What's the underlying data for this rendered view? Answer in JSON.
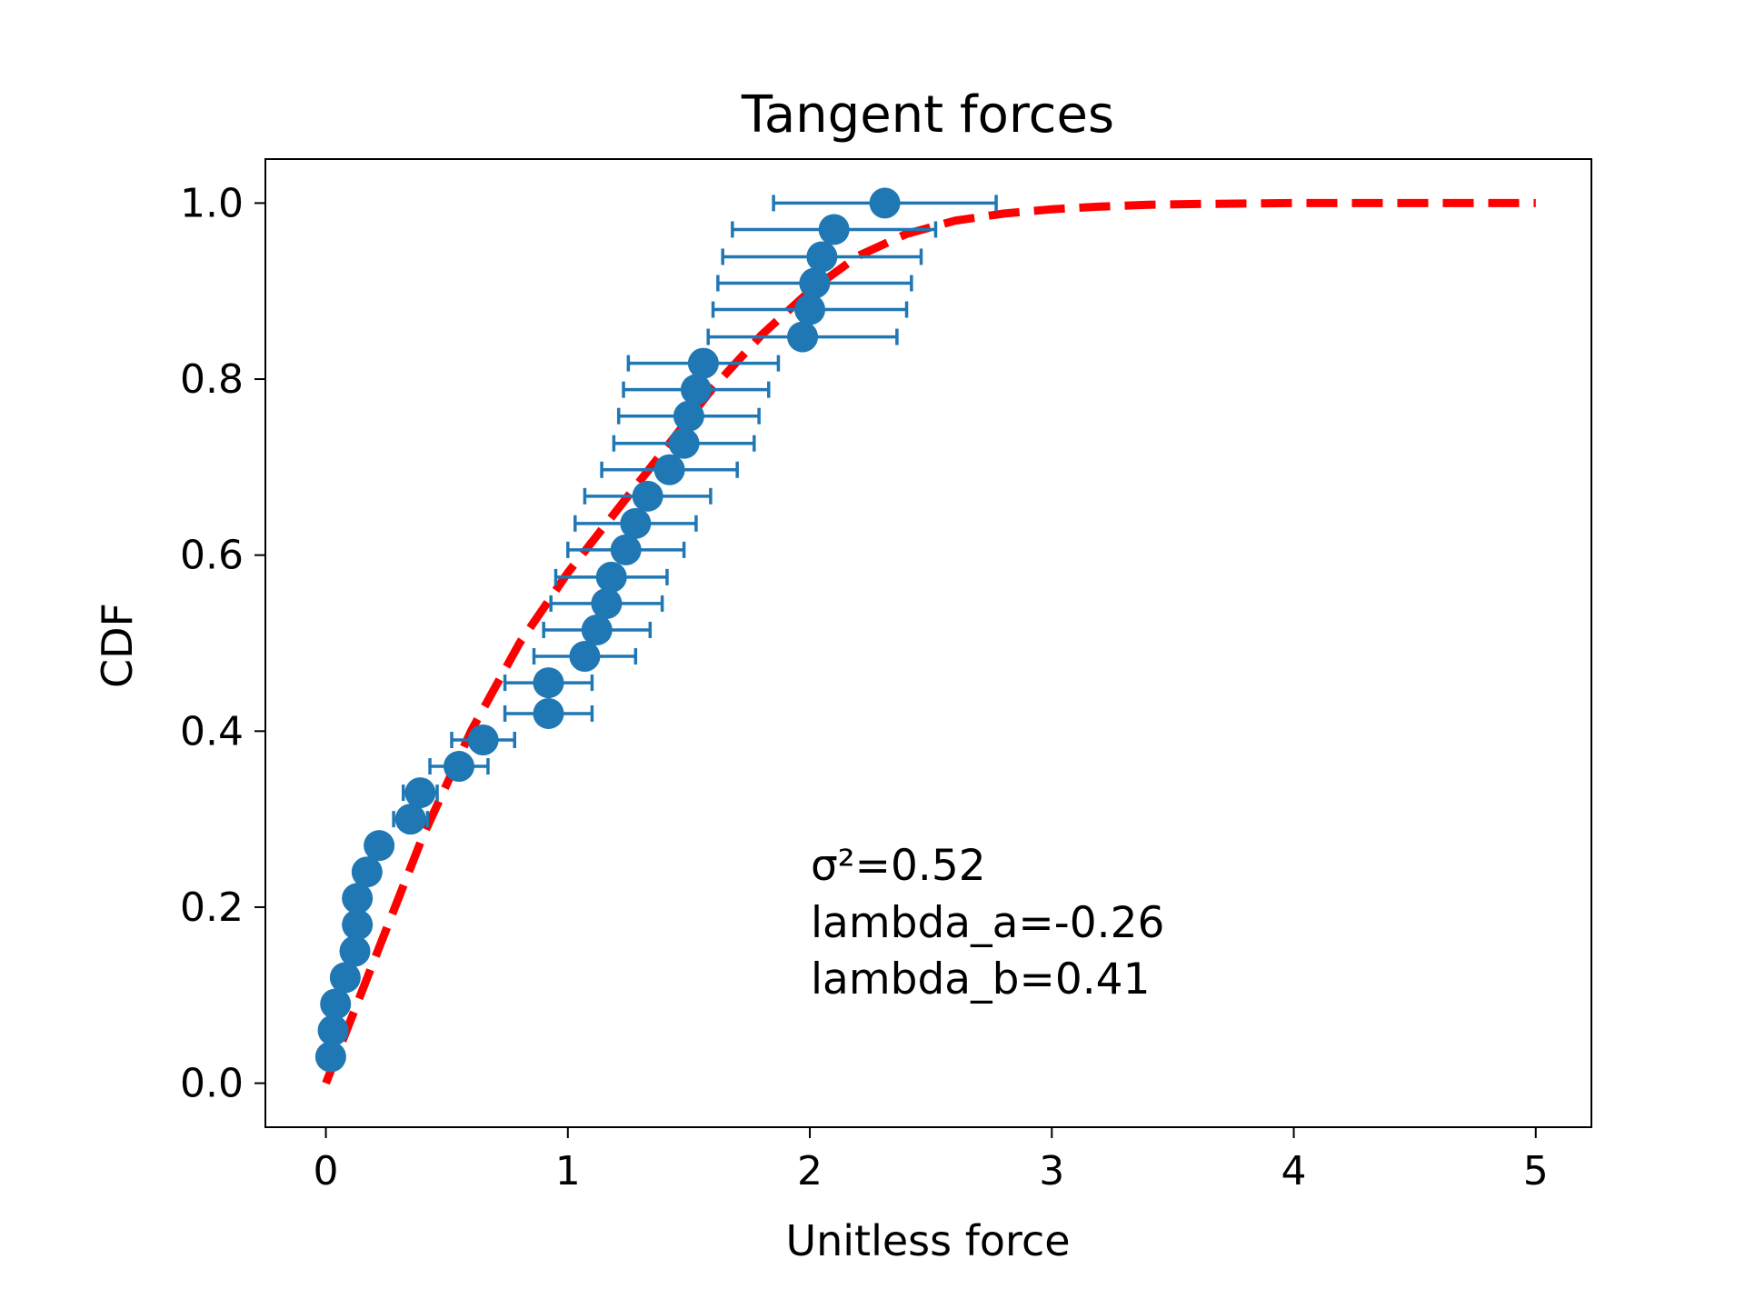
{
  "chart_data": {
    "type": "scatter",
    "title": "Tangent forces",
    "xlabel": "Unitless force",
    "ylabel": "CDF",
    "xlim": [
      -0.25,
      5.23
    ],
    "ylim": [
      -0.05,
      1.05
    ],
    "x_ticks": [
      0,
      1,
      2,
      3,
      4,
      5
    ],
    "x_tick_labels": [
      "0",
      "1",
      "2",
      "3",
      "4",
      "5"
    ],
    "y_ticks": [
      0.0,
      0.2,
      0.4,
      0.6,
      0.8,
      1.0
    ],
    "y_tick_labels": [
      "0.0",
      "0.2",
      "0.4",
      "0.6",
      "0.8",
      "1.0"
    ],
    "grid": false,
    "legend": "none",
    "colors": {
      "points": "#1f77b4",
      "fit": "#ff0000",
      "axes": "#000000"
    },
    "series": [
      {
        "kind": "points_with_xerr",
        "x": [
          0.02,
          0.03,
          0.04,
          0.08,
          0.12,
          0.13,
          0.13,
          0.17,
          0.22,
          0.35,
          0.39,
          0.55,
          0.65,
          0.92,
          0.92,
          1.07,
          1.12,
          1.16,
          1.18,
          1.24,
          1.28,
          1.33,
          1.42,
          1.48,
          1.5,
          1.53,
          1.56,
          1.97,
          2.0,
          2.02,
          2.05,
          2.1,
          2.31
        ],
        "y": [
          0.03,
          0.06,
          0.09,
          0.12,
          0.15,
          0.18,
          0.21,
          0.24,
          0.27,
          0.3,
          0.33,
          0.36,
          0.39,
          0.42,
          0.455,
          0.485,
          0.515,
          0.545,
          0.575,
          0.606,
          0.636,
          0.667,
          0.697,
          0.727,
          0.758,
          0.788,
          0.818,
          0.848,
          0.879,
          0.909,
          0.939,
          0.97,
          1.0
        ],
        "xerr": [
          0.0,
          0.0,
          0.0,
          0.0,
          0.0,
          0.0,
          0.0,
          0.0,
          0.0,
          0.07,
          0.07,
          0.12,
          0.13,
          0.18,
          0.18,
          0.21,
          0.22,
          0.23,
          0.23,
          0.24,
          0.25,
          0.26,
          0.28,
          0.29,
          0.29,
          0.3,
          0.31,
          0.39,
          0.4,
          0.4,
          0.41,
          0.42,
          0.46
        ]
      },
      {
        "kind": "fit_curve",
        "x": [
          0,
          0.1,
          0.2,
          0.3,
          0.4,
          0.5,
          0.6,
          0.7,
          0.8,
          0.9,
          1.0,
          1.2,
          1.4,
          1.6,
          1.8,
          2.0,
          2.2,
          2.4,
          2.6,
          2.8,
          3.0,
          3.2,
          3.4,
          3.6,
          3.8,
          4.0,
          4.5,
          5.0
        ],
        "y": [
          0.0,
          0.07,
          0.14,
          0.21,
          0.28,
          0.34,
          0.4,
          0.45,
          0.5,
          0.54,
          0.58,
          0.65,
          0.72,
          0.79,
          0.85,
          0.9,
          0.94,
          0.965,
          0.98,
          0.988,
          0.993,
          0.996,
          0.998,
          0.999,
          0.9995,
          1.0,
          1.0,
          1.0
        ]
      }
    ],
    "annotations": [
      "σ²=0.52",
      "lambda_a=-0.26",
      "lambda_b=0.41"
    ]
  }
}
